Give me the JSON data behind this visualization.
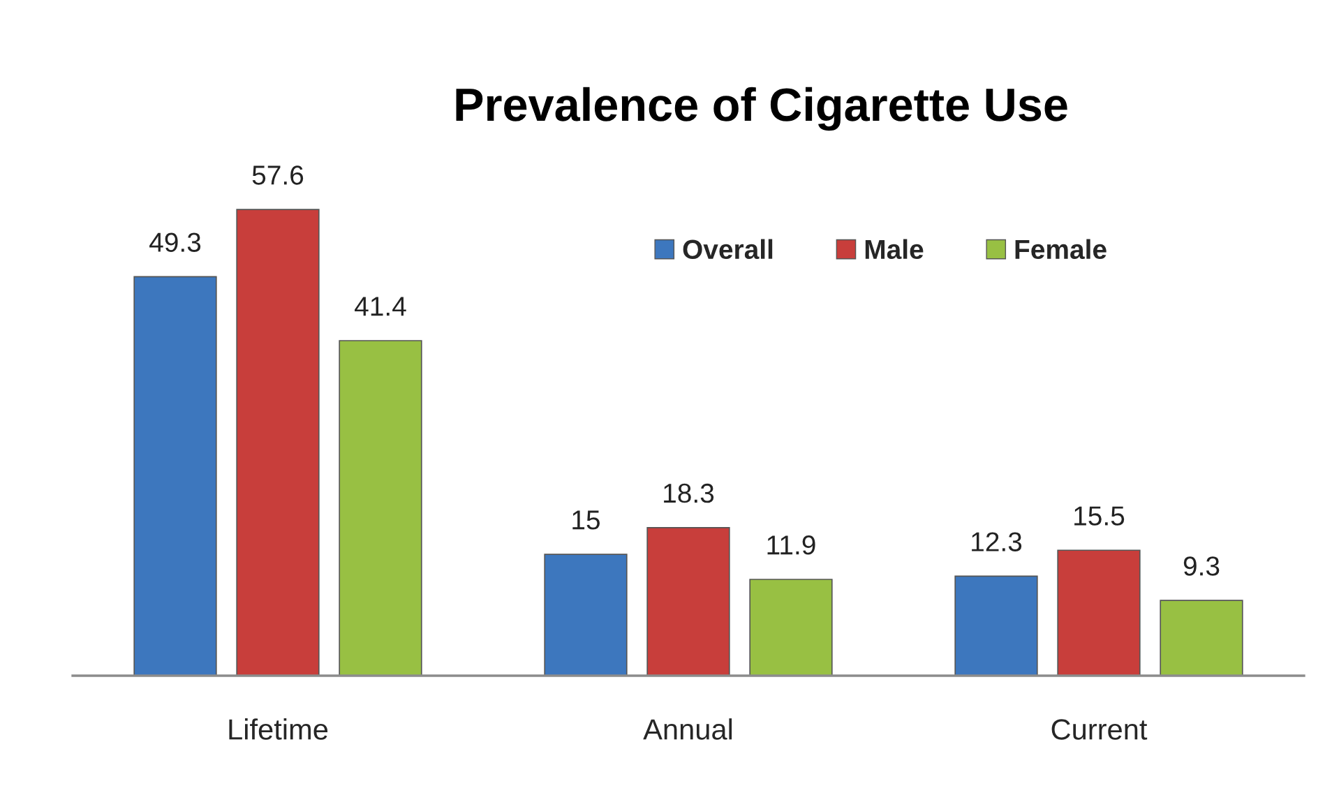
{
  "chart_data": {
    "type": "bar",
    "title": "Prevalence of Cigarette Use",
    "categories": [
      "Lifetime",
      "Annual",
      "Current"
    ],
    "series": [
      {
        "name": "Overall",
        "color": "#3d77be",
        "values": [
          49.3,
          15,
          12.3
        ]
      },
      {
        "name": "Male",
        "color": "#c83e3b",
        "values": [
          57.6,
          18.3,
          15.5
        ]
      },
      {
        "name": "Female",
        "color": "#98c043",
        "values": [
          41.4,
          11.9,
          9.3
        ]
      }
    ],
    "data_labels": true,
    "legend": "top right",
    "grid": false
  }
}
